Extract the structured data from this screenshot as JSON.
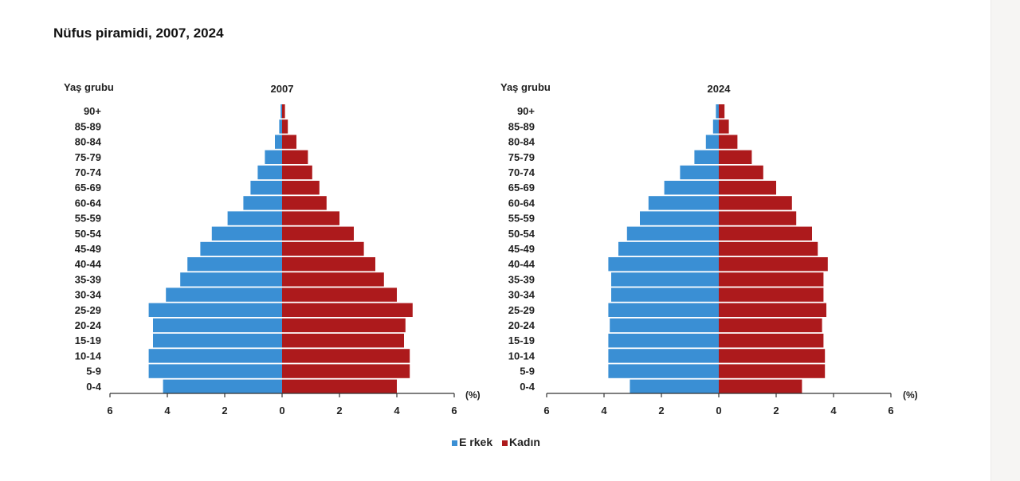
{
  "title": "Nüfus piramidi, 2007, 2024",
  "colors": {
    "male": "#3a8fd4",
    "female": "#ad1a1c",
    "axis": "#333333"
  },
  "legend": {
    "male": {
      "label": "E rkek",
      "icon": "square-swatch"
    },
    "female": {
      "label": "Kadın",
      "icon": "square-swatch"
    }
  },
  "chart_data": [
    {
      "type": "bar",
      "orientation": "horizontal-pyramid",
      "title": "2007",
      "ylabel": "Yaş grubu",
      "xlabel": "(%)",
      "xlim": [
        -6,
        6
      ],
      "xticks": [
        -6,
        -4,
        -2,
        0,
        2,
        4,
        6
      ],
      "xtick_labels": [
        "6",
        "4",
        "2",
        "0",
        "2",
        "4",
        "6"
      ],
      "categories": [
        "90+",
        "85-89",
        "80-84",
        "75-79",
        "70-74",
        "65-69",
        "60-64",
        "55-59",
        "50-54",
        "45-49",
        "40-44",
        "35-39",
        "30-34",
        "25-29",
        "20-24",
        "15-19",
        "10-14",
        "5-9",
        "0-4"
      ],
      "series": [
        {
          "name": "Erkek",
          "values": [
            0.05,
            0.1,
            0.25,
            0.6,
            0.85,
            1.1,
            1.35,
            1.9,
            2.45,
            2.85,
            3.3,
            3.55,
            4.05,
            4.65,
            4.5,
            4.5,
            4.65,
            4.65,
            4.15
          ]
        },
        {
          "name": "Kadın",
          "values": [
            0.1,
            0.2,
            0.5,
            0.9,
            1.05,
            1.3,
            1.55,
            2.0,
            2.5,
            2.85,
            3.25,
            3.55,
            4.0,
            4.55,
            4.3,
            4.25,
            4.45,
            4.45,
            4.0
          ]
        }
      ]
    },
    {
      "type": "bar",
      "orientation": "horizontal-pyramid",
      "title": "2024",
      "ylabel": "Yaş grubu",
      "xlabel": "(%)",
      "xlim": [
        -6,
        6
      ],
      "xticks": [
        -6,
        -4,
        -2,
        0,
        2,
        4,
        6
      ],
      "xtick_labels": [
        "6",
        "4",
        "2",
        "0",
        "2",
        "4",
        "6"
      ],
      "categories": [
        "90+",
        "85-89",
        "80-84",
        "75-79",
        "70-74",
        "65-69",
        "60-64",
        "55-59",
        "50-54",
        "45-49",
        "40-44",
        "35-39",
        "30-34",
        "25-29",
        "20-24",
        "15-19",
        "10-14",
        "5-9",
        "0-4"
      ],
      "series": [
        {
          "name": "Erkek",
          "values": [
            0.1,
            0.2,
            0.45,
            0.85,
            1.35,
            1.9,
            2.45,
            2.75,
            3.2,
            3.5,
            3.85,
            3.75,
            3.75,
            3.85,
            3.8,
            3.85,
            3.85,
            3.85,
            3.1
          ]
        },
        {
          "name": "Kadın",
          "values": [
            0.2,
            0.35,
            0.65,
            1.15,
            1.55,
            2.0,
            2.55,
            2.7,
            3.25,
            3.45,
            3.8,
            3.65,
            3.65,
            3.75,
            3.6,
            3.65,
            3.7,
            3.7,
            2.9
          ]
        }
      ]
    }
  ]
}
